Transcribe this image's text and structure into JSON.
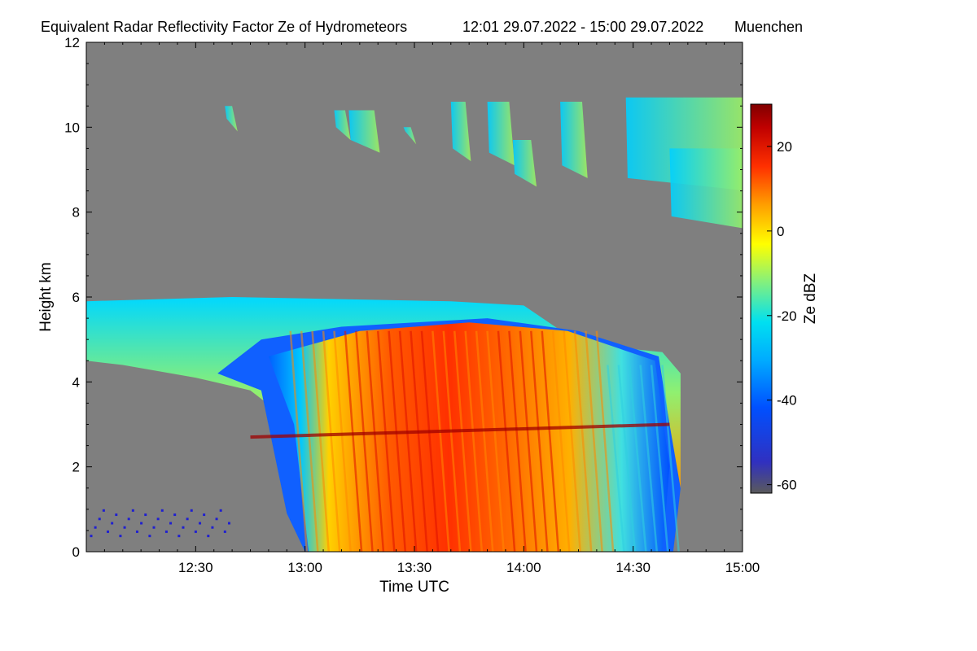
{
  "chart_data": {
    "type": "heatmap",
    "title": "Equivalent Radar Reflectivity Factor Ze of Hydrometeors",
    "time_range_text": "12:01 29.07.2022 - 15:00 29.07.2022",
    "location": "Muenchen",
    "xlabel": "Time UTC",
    "ylabel": "Height km",
    "x_range_minutes": [
      0,
      180
    ],
    "x_tick_minutes": [
      30,
      60,
      90,
      120,
      150,
      180
    ],
    "x_tick_labels": [
      "12:30",
      "13:00",
      "13:30",
      "14:00",
      "14:30",
      "15:00"
    ],
    "ylim": [
      0,
      12
    ],
    "y_ticks": [
      0,
      2,
      4,
      6,
      8,
      10,
      12
    ],
    "y_tick_labels": [
      "0",
      "2",
      "4",
      "6",
      "8",
      "10",
      "12"
    ],
    "colorbar": {
      "label": "Ze dBZ",
      "range": [
        -62,
        30
      ],
      "ticks": [
        20,
        0,
        -20,
        -40,
        -60
      ],
      "tick_labels": [
        "20",
        "0",
        "-20",
        "-40",
        "-60"
      ]
    },
    "features": [
      {
        "name": "cirrus",
        "x_start_min": 30,
        "x_end_min": 180,
        "height_bottom_km": 8.5,
        "height_top_km": 10.7,
        "ze_dbz": -20
      },
      {
        "name": "stratiform-layer",
        "x_start_min": 0,
        "x_end_min": 163,
        "height_bottom_km": 4.5,
        "height_top_km": 6.0,
        "ze_dbz": -10
      },
      {
        "name": "precipitation",
        "x_start_min": 55,
        "x_end_min": 163,
        "height_bottom_km": 0,
        "height_top_km": 5.5,
        "ze_dbz": 15
      },
      {
        "name": "melting-layer",
        "x_start_min": 45,
        "x_end_min": 160,
        "height_km": 2.7,
        "ze_dbz": 25
      },
      {
        "name": "near-surface-clutter",
        "x_start_min": 1,
        "x_end_min": 40,
        "height_bottom_km": 0.4,
        "height_top_km": 1.1,
        "ze_dbz": -45
      }
    ]
  }
}
